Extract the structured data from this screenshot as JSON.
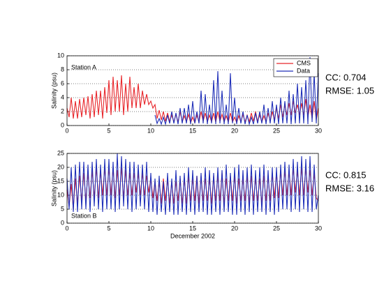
{
  "chart_data": [
    {
      "type": "line",
      "ylabel": "Salinity (psu)",
      "annotation": "Station A",
      "stats": [
        "CC: 0.704",
        "RMSE: 1.05"
      ],
      "legend": "upper right",
      "grid": "y",
      "xlim": [
        0,
        30
      ],
      "xticks": [
        0,
        5,
        10,
        15,
        20,
        25,
        30
      ],
      "ylim": [
        0,
        10
      ],
      "yticks": [
        0,
        2,
        4,
        6,
        8,
        10
      ],
      "x": [
        0,
        0.25,
        0.5,
        0.75,
        1,
        1.25,
        1.5,
        1.75,
        2,
        2.25,
        2.5,
        2.75,
        3,
        3.25,
        3.5,
        3.75,
        4,
        4.25,
        4.5,
        4.75,
        5,
        5.25,
        5.5,
        5.75,
        6,
        6.25,
        6.5,
        6.75,
        7,
        7.25,
        7.5,
        7.75,
        8,
        8.25,
        8.5,
        8.75,
        9,
        9.25,
        9.5,
        9.75,
        10,
        10.25,
        10.5,
        10.75,
        11,
        11.25,
        11.5,
        11.75,
        12,
        12.25,
        12.5,
        12.75,
        13,
        13.25,
        13.5,
        13.75,
        14,
        14.25,
        14.5,
        14.75,
        15,
        15.25,
        15.5,
        15.75,
        16,
        16.25,
        16.5,
        16.75,
        17,
        17.25,
        17.5,
        17.75,
        18,
        18.25,
        18.5,
        18.75,
        19,
        19.25,
        19.5,
        19.75,
        20,
        20.25,
        20.5,
        20.75,
        21,
        21.25,
        21.5,
        21.75,
        22,
        22.25,
        22.5,
        22.75,
        23,
        23.25,
        23.5,
        23.75,
        24,
        24.25,
        24.5,
        24.75,
        25,
        25.25,
        25.5,
        25.75,
        26,
        26.25,
        26.5,
        26.75,
        27,
        27.25,
        27.5,
        27.75,
        28,
        28.25,
        28.5,
        28.75,
        29,
        29.25,
        29.5,
        29.75,
        30
      ],
      "series": [
        {
          "name": "CMS",
          "color": "#e8262b",
          "values": [
            2.5,
            1.2,
            4.0,
            1.0,
            3.5,
            1.0,
            3.8,
            1.2,
            4.0,
            1.5,
            4.2,
            1.0,
            4.5,
            1.2,
            5.0,
            1.5,
            5.0,
            1.0,
            5.5,
            1.8,
            6.5,
            1.5,
            7.0,
            2.0,
            6.5,
            2.0,
            7.2,
            1.5,
            6.0,
            2.0,
            7.0,
            2.5,
            5.5,
            2.5,
            6.0,
            2.5,
            5.0,
            3.0,
            4.5,
            3.0,
            3.5,
            2.5,
            3.0,
            1.0,
            2.2,
            0.8,
            2.0,
            0.6,
            1.8,
            0.6,
            1.5,
            0.5,
            1.6,
            0.5,
            2.0,
            0.5,
            1.4,
            0.5,
            1.6,
            0.4,
            1.2,
            0.4,
            1.5,
            0.5,
            2.0,
            0.6,
            1.8,
            0.5,
            1.5,
            0.5,
            1.8,
            0.5,
            2.0,
            0.6,
            1.6,
            0.5,
            1.4,
            0.5,
            1.8,
            0.5,
            1.2,
            0.4,
            1.4,
            0.5,
            1.6,
            0.5,
            1.5,
            0.5,
            1.8,
            0.6,
            2.0,
            0.6,
            1.5,
            0.5,
            1.4,
            0.5,
            1.8,
            0.6,
            2.0,
            0.8,
            2.5,
            1.0,
            3.0,
            1.2,
            3.0,
            1.5,
            3.2,
            1.5,
            3.5,
            1.8,
            3.0,
            1.5,
            3.2,
            1.5,
            3.8,
            1.2,
            3.0,
            1.0,
            3.5,
            0.8,
            2.5
          ]
        },
        {
          "name": "Data",
          "color": "#1f2fb8",
          "values": [
            null,
            null,
            null,
            null,
            null,
            null,
            null,
            null,
            null,
            null,
            null,
            null,
            null,
            null,
            null,
            null,
            null,
            null,
            null,
            null,
            null,
            null,
            null,
            null,
            null,
            null,
            null,
            null,
            null,
            null,
            null,
            null,
            null,
            null,
            null,
            null,
            null,
            null,
            null,
            null,
            null,
            null,
            1.5,
            0.3,
            1.0,
            0.2,
            1.2,
            0.2,
            1.5,
            0.3,
            2.0,
            0.3,
            1.8,
            0.2,
            2.5,
            0.3,
            2.5,
            0.3,
            3.0,
            0.2,
            3.5,
            0.3,
            2.0,
            0.3,
            5.0,
            0.3,
            4.5,
            0.2,
            3.0,
            0.3,
            6.5,
            0.2,
            7.8,
            0.3,
            5.0,
            0.2,
            3.0,
            0.2,
            7.5,
            0.3,
            4.0,
            0.2,
            2.5,
            0.3,
            2.0,
            0.2,
            1.5,
            0.2,
            1.2,
            0.2,
            1.8,
            0.3,
            2.0,
            0.3,
            3.0,
            0.2,
            2.5,
            0.3,
            3.5,
            0.3,
            3.0,
            0.2,
            4.0,
            0.3,
            3.5,
            0.3,
            5.0,
            0.2,
            4.5,
            0.3,
            6.0,
            0.3,
            5.5,
            0.3,
            6.5,
            0.2,
            9.8,
            0.5,
            7.5,
            0.3,
            7.5
          ]
        }
      ]
    },
    {
      "type": "line",
      "ylabel": "Salinity (psu)",
      "xlabel": "December 2002",
      "annotation": "Station B",
      "stats": [
        "CC: 0.815",
        "RMSE: 3.16"
      ],
      "grid": "y",
      "xlim": [
        0,
        30
      ],
      "xticks": [
        0,
        5,
        10,
        15,
        20,
        25,
        30
      ],
      "ylim": [
        0,
        25
      ],
      "yticks": [
        0,
        5,
        10,
        15,
        20,
        25
      ],
      "x": [
        0,
        0.25,
        0.5,
        0.75,
        1,
        1.25,
        1.5,
        1.75,
        2,
        2.25,
        2.5,
        2.75,
        3,
        3.25,
        3.5,
        3.75,
        4,
        4.25,
        4.5,
        4.75,
        5,
        5.25,
        5.5,
        5.75,
        6,
        6.25,
        6.5,
        6.75,
        7,
        7.25,
        7.5,
        7.75,
        8,
        8.25,
        8.5,
        8.75,
        9,
        9.25,
        9.5,
        9.75,
        10,
        10.25,
        10.5,
        10.75,
        11,
        11.25,
        11.5,
        11.75,
        12,
        12.25,
        12.5,
        12.75,
        13,
        13.25,
        13.5,
        13.75,
        14,
        14.25,
        14.5,
        14.75,
        15,
        15.25,
        15.5,
        15.75,
        16,
        16.25,
        16.5,
        16.75,
        17,
        17.25,
        17.5,
        17.75,
        18,
        18.25,
        18.5,
        18.75,
        19,
        19.25,
        19.5,
        19.75,
        20,
        20.25,
        20.5,
        20.75,
        21,
        21.25,
        21.5,
        21.75,
        22,
        22.25,
        22.5,
        22.75,
        23,
        23.25,
        23.5,
        23.75,
        24,
        24.25,
        24.5,
        24.75,
        25,
        25.25,
        25.5,
        25.75,
        26,
        26.25,
        26.5,
        26.75,
        27,
        27.25,
        27.5,
        27.75,
        28,
        28.25,
        28.5,
        28.75,
        29,
        29.25,
        29.5,
        29.75,
        30
      ],
      "series": [
        {
          "color": "#e8262b",
          "values": [
            12,
            6,
            14,
            5,
            16,
            7,
            17,
            8,
            18,
            8,
            18,
            9,
            19,
            9,
            20,
            9,
            19,
            10,
            20,
            10,
            20,
            10,
            20,
            9,
            19,
            10,
            20,
            9,
            19,
            10,
            18,
            10,
            18,
            11,
            18,
            10,
            18,
            10,
            17,
            11,
            16,
            9,
            15,
            8,
            15,
            7,
            16,
            8,
            16,
            7,
            15,
            7,
            15,
            8,
            16,
            7,
            16,
            7,
            17,
            8,
            16,
            8,
            17,
            7,
            17,
            8,
            16,
            8,
            16,
            7,
            17,
            8,
            17,
            8,
            18,
            7,
            16,
            8,
            17,
            8,
            17,
            7,
            16,
            8,
            16,
            8,
            17,
            7,
            17,
            8,
            16,
            8,
            16,
            7,
            17,
            8,
            17,
            8,
            18,
            9,
            18,
            9,
            19,
            10,
            19,
            10,
            19,
            10,
            20,
            11,
            19,
            10,
            20,
            10,
            20,
            11,
            19,
            10,
            18,
            9,
            8
          ]
        },
        {
          "color": "#1f2fb8",
          "values": [
            16,
            5,
            20,
            4,
            21,
            4,
            22,
            5,
            22,
            5,
            21,
            4,
            22,
            6,
            23,
            5,
            21,
            4,
            23,
            5,
            23,
            5,
            22,
            4,
            25,
            5,
            24,
            6,
            23,
            5,
            22,
            4,
            22,
            5,
            21,
            6,
            21,
            5,
            22,
            4,
            18,
            4,
            16,
            3,
            17,
            4,
            15,
            3,
            18,
            4,
            16,
            3,
            19,
            3,
            17,
            4,
            18,
            3,
            20,
            4,
            19,
            3,
            17,
            4,
            18,
            4,
            20,
            3,
            19,
            3,
            18,
            4,
            20,
            3,
            19,
            4,
            21,
            4,
            18,
            3,
            20,
            3,
            21,
            4,
            19,
            3,
            20,
            4,
            21,
            3,
            19,
            4,
            20,
            4,
            21,
            3,
            19,
            4,
            20,
            3,
            20,
            4,
            21,
            5,
            22,
            5,
            21,
            4,
            23,
            5,
            22,
            4,
            24,
            5,
            23,
            4,
            24,
            4,
            21,
            5,
            10
          ]
        }
      ]
    }
  ]
}
